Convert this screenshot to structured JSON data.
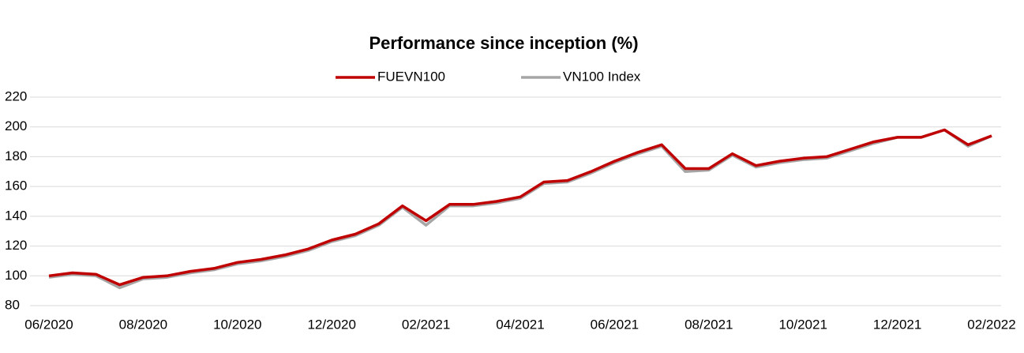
{
  "chart_data": {
    "type": "line",
    "title": "Performance since inception (%)",
    "categories": [
      "06/2020",
      null,
      null,
      null,
      "08/2020",
      null,
      null,
      null,
      "10/2020",
      null,
      null,
      null,
      "12/2020",
      null,
      null,
      null,
      "02/2021",
      null,
      null,
      null,
      "04/2021",
      null,
      null,
      null,
      "06/2021",
      null,
      null,
      null,
      "08/2021",
      null,
      null,
      null,
      "10/2021",
      null,
      null,
      null,
      "12/2021",
      null,
      null,
      null,
      "02/2022"
    ],
    "series": [
      {
        "name": "FUEVN100",
        "color": "#c00000",
        "values": [
          100,
          102,
          101,
          94,
          99,
          100,
          103,
          105,
          109,
          111,
          114,
          118,
          124,
          128,
          135,
          147,
          137,
          148,
          148,
          150,
          153,
          163,
          164,
          170,
          177,
          183,
          188,
          172,
          172,
          182,
          174,
          177,
          179,
          180,
          185,
          190,
          193,
          193,
          198,
          188,
          194
        ]
      },
      {
        "name": "VN100 Index",
        "color": "#a6a6a6",
        "values": [
          99,
          101,
          100,
          92,
          98,
          99,
          102,
          104,
          108,
          110,
          113,
          117,
          123,
          127,
          134,
          146,
          134,
          147,
          147,
          149,
          152,
          162,
          163,
          169,
          176,
          182,
          187,
          170,
          171,
          181,
          173,
          176,
          178,
          179,
          184,
          189,
          193,
          193,
          198,
          187,
          194
        ]
      }
    ],
    "ylim": [
      80,
      220
    ],
    "yticks": [
      80,
      100,
      120,
      140,
      160,
      180,
      200,
      220
    ],
    "grid": true
  }
}
